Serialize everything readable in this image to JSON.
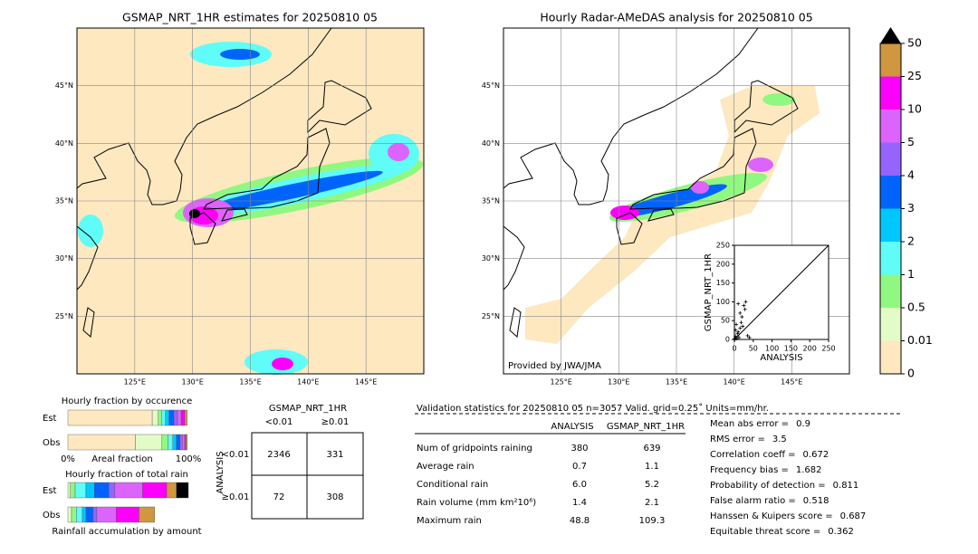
{
  "left_map": {
    "title": "GSMAP_NRT_1HR estimates for 20250810 05",
    "xlim": [
      120,
      150
    ],
    "ylim": [
      20,
      50
    ],
    "xticks": [
      {
        "value": 125,
        "label": "125°E"
      },
      {
        "value": 130,
        "label": "130°E"
      },
      {
        "value": 135,
        "label": "135°E"
      },
      {
        "value": 140,
        "label": "140°E"
      },
      {
        "value": 145,
        "label": "145°E"
      }
    ],
    "yticks": [
      {
        "value": 25,
        "label": "25°N"
      },
      {
        "value": 30,
        "label": "30°N"
      },
      {
        "value": 35,
        "label": "35°N"
      },
      {
        "value": 40,
        "label": "40°N"
      },
      {
        "value": 45,
        "label": "45°N"
      }
    ]
  },
  "right_map": {
    "title": "Hourly Radar-AMeDAS analysis for 20250810 05",
    "credit": "Provided by JWA/JMA",
    "xlim": [
      120,
      150
    ],
    "ylim": [
      20,
      50
    ],
    "xticks": [
      {
        "value": 125,
        "label": "125°E"
      },
      {
        "value": 130,
        "label": "130°E"
      },
      {
        "value": 135,
        "label": "135°E"
      },
      {
        "value": 140,
        "label": "140°E"
      },
      {
        "value": 145,
        "label": "145°E"
      }
    ],
    "yticks": [
      {
        "value": 25,
        "label": "25°N"
      },
      {
        "value": 30,
        "label": "30°N"
      },
      {
        "value": 35,
        "label": "35°N"
      },
      {
        "value": 40,
        "label": "40°N"
      },
      {
        "value": 45,
        "label": "45°N"
      }
    ]
  },
  "colorbar": {
    "levels": [
      0,
      0.01,
      0.5,
      1,
      2,
      3,
      4,
      5,
      10,
      25,
      50
    ],
    "colors": [
      "#fde8c0",
      "#e2fcc8",
      "#90f880",
      "#60fcf8",
      "#00c8fc",
      "#0064fc",
      "#9664fc",
      "#dc64fc",
      "#fc00fc",
      "#d09640"
    ],
    "extend_color": "#000000"
  },
  "scatter": {
    "type": "scatter",
    "xlabel": "ANALYSIS",
    "ylabel": "GSMAP_NRT_1HR",
    "xlim": [
      0,
      250
    ],
    "ylim": [
      0,
      250
    ],
    "xticks": [
      0,
      50,
      100,
      150,
      200,
      250
    ],
    "yticks": [
      0,
      50,
      100,
      150,
      200,
      250
    ],
    "color": "#000000",
    "x": [
      1,
      2,
      3,
      5,
      8,
      10,
      12,
      15,
      18,
      20,
      22,
      25,
      28,
      30,
      35,
      40,
      5,
      10,
      3,
      15
    ],
    "y": [
      1,
      3,
      8,
      2,
      15,
      20,
      5,
      30,
      45,
      60,
      35,
      90,
      80,
      100,
      10,
      5,
      40,
      95,
      25,
      70
    ]
  },
  "occurrence": {
    "title": "Hourly fraction by occurence",
    "xlabel": "Areal fraction",
    "xlim": [
      0,
      100
    ],
    "xticks": [
      {
        "value": 0,
        "label": "0%"
      },
      {
        "value": 100,
        "label": "100%"
      }
    ],
    "series": [
      {
        "name": "Est",
        "values": [
          70,
          5,
          3,
          3,
          3,
          4,
          3,
          3,
          3,
          2
        ]
      },
      {
        "name": "Obs",
        "values": [
          56,
          22,
          5,
          4,
          3,
          3,
          2,
          2,
          1,
          1
        ]
      }
    ]
  },
  "total_rain": {
    "title": "Hourly fraction of total rain",
    "xlabel": "Rainfall accumulation by amount",
    "xlim": [
      0,
      100
    ],
    "series": [
      {
        "name": "Est",
        "values": [
          0,
          2,
          4,
          9,
          7,
          12,
          5,
          23,
          20,
          8,
          10
        ]
      },
      {
        "name": "Obs",
        "values": [
          0,
          3,
          4,
          5,
          3,
          6,
          3,
          16,
          19,
          13,
          0
        ]
      }
    ]
  },
  "contingency": {
    "title": "GSMAP_NRT_1HR",
    "col_labels": [
      "<0.01",
      "≥0.01"
    ],
    "row_title": "ANALYSIS",
    "row_labels": [
      "<0.01",
      "≥0.01"
    ],
    "cells": [
      [
        2346,
        331
      ],
      [
        72,
        308
      ]
    ]
  },
  "stats": {
    "title": "Validation statistics for 20250810 05  n=3057 Valid. grid=0.25˚ Units=mm/hr.",
    "columns": [
      "ANALYSIS",
      "GSMAP_NRT_1HR"
    ],
    "rows": [
      {
        "label": "Num of gridpoints raining",
        "values": [
          "380",
          "639"
        ]
      },
      {
        "label": "Average rain",
        "values": [
          "0.7",
          "1.1"
        ]
      },
      {
        "label": "Conditional rain",
        "values": [
          "6.0",
          "5.2"
        ]
      },
      {
        "label": "Rain volume (mm km²10⁶)",
        "values": [
          "1.4",
          "2.1"
        ]
      },
      {
        "label": "Maximum rain",
        "values": [
          "48.8",
          "109.3"
        ]
      }
    ],
    "scores": [
      {
        "label": "Mean abs error =",
        "value": "0.9"
      },
      {
        "label": "RMS error =",
        "value": "3.5"
      },
      {
        "label": "Correlation coeff =",
        "value": "0.672"
      },
      {
        "label": "Frequency bias =",
        "value": "1.682"
      },
      {
        "label": "Probability of detection =",
        "value": "0.811"
      },
      {
        "label": "False alarm ratio =",
        "value": "0.518"
      },
      {
        "label": "Hanssen & Kuipers score =",
        "value": "0.687"
      },
      {
        "label": "Equitable threat score =",
        "value": "0.362"
      }
    ]
  }
}
